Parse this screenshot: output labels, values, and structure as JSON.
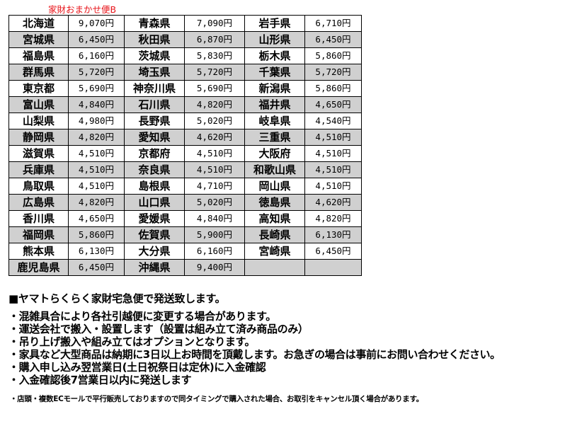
{
  "title": "家財おまかせ便B",
  "table": {
    "rows": [
      [
        [
          "北海道",
          "9,070円"
        ],
        [
          "青森県",
          "7,090円"
        ],
        [
          "岩手県",
          "6,710円"
        ]
      ],
      [
        [
          "宮城県",
          "6,450円"
        ],
        [
          "秋田県",
          "6,870円"
        ],
        [
          "山形県",
          "6,450円"
        ]
      ],
      [
        [
          "福島県",
          "6,160円"
        ],
        [
          "茨城県",
          "5,830円"
        ],
        [
          "栃木県",
          "5,860円"
        ]
      ],
      [
        [
          "群馬県",
          "5,720円"
        ],
        [
          "埼玉県",
          "5,720円"
        ],
        [
          "千葉県",
          "5,720円"
        ]
      ],
      [
        [
          "東京都",
          "5,690円"
        ],
        [
          "神奈川県",
          "5,690円"
        ],
        [
          "新潟県",
          "5,860円"
        ]
      ],
      [
        [
          "富山県",
          "4,840円"
        ],
        [
          "石川県",
          "4,820円"
        ],
        [
          "福井県",
          "4,650円"
        ]
      ],
      [
        [
          "山梨県",
          "4,980円"
        ],
        [
          "長野県",
          "5,020円"
        ],
        [
          "岐阜県",
          "4,540円"
        ]
      ],
      [
        [
          "静岡県",
          "4,820円"
        ],
        [
          "愛知県",
          "4,620円"
        ],
        [
          "三重県",
          "4,510円"
        ]
      ],
      [
        [
          "滋賀県",
          "4,510円"
        ],
        [
          "京都府",
          "4,510円"
        ],
        [
          "大阪府",
          "4,510円"
        ]
      ],
      [
        [
          "兵庫県",
          "4,510円"
        ],
        [
          "奈良県",
          "4,510円"
        ],
        [
          "和歌山県",
          "4,510円"
        ]
      ],
      [
        [
          "鳥取県",
          "4,510円"
        ],
        [
          "島根県",
          "4,710円"
        ],
        [
          "岡山県",
          "4,510円"
        ]
      ],
      [
        [
          "広島県",
          "4,820円"
        ],
        [
          "山口県",
          "5,020円"
        ],
        [
          "徳島県",
          "4,620円"
        ]
      ],
      [
        [
          "香川県",
          "4,650円"
        ],
        [
          "愛媛県",
          "4,840円"
        ],
        [
          "高知県",
          "4,820円"
        ]
      ],
      [
        [
          "福岡県",
          "5,860円"
        ],
        [
          "佐賀県",
          "5,900円"
        ],
        [
          "長崎県",
          "6,130円"
        ]
      ],
      [
        [
          "熊本県",
          "6,130円"
        ],
        [
          "大分県",
          "6,160円"
        ],
        [
          "宮崎県",
          "6,450円"
        ]
      ],
      [
        [
          "鹿児島県",
          "6,450円"
        ],
        [
          "沖縄県",
          "9,400円"
        ],
        [
          "",
          ""
        ]
      ]
    ]
  },
  "notes": {
    "heading": "■ヤマトらくらく家財宅急便で発送致します。",
    "bullets": [
      "・混雑具合により各社引越便に変更する場合があります。",
      "・運送会社で搬入・設置します（設置は組み立て済み商品のみ）",
      "・吊り上げ搬入や組み立てはオプションとなります。",
      "・家具など大型商品は納期に3日以上お時間を頂戴します。お急ぎの場合は事前にお問い合わせください。",
      "・購入申し込み翌営業日(土日祝祭日は定休)に入金確認",
      "・入金確認後7営業日以内に発送します"
    ],
    "footnote": "・店頭・複数ECモールで平行販売しておりますので同タイミングで購入された場合、お取引をキャンセル頂く場合があります。"
  },
  "colors": {
    "title": "#e8141a",
    "alt_row": "#d0d0d0"
  }
}
